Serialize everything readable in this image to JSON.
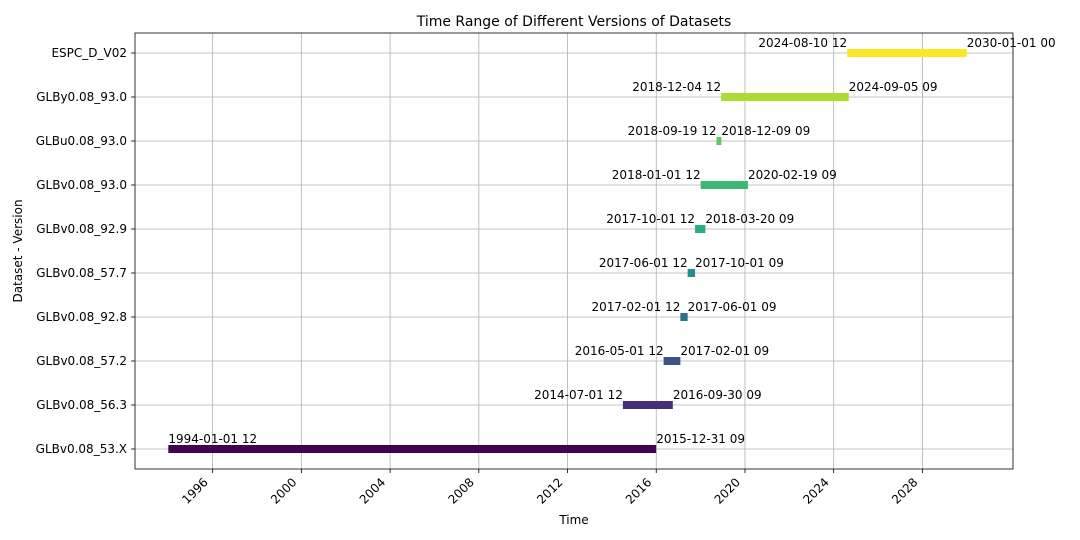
{
  "chart_data": {
    "type": "bar",
    "orientation": "horizontal-range",
    "title": "Time Range of Different Versions of Datasets",
    "xlabel": "Time",
    "ylabel": "Dataset - Version",
    "xlim": [
      "1992-07-01",
      "2032-02-01"
    ],
    "x_ticks": [
      "1996",
      "2000",
      "2004",
      "2008",
      "2012",
      "2016",
      "2020",
      "2024",
      "2028"
    ],
    "grid": true,
    "categories": [
      "GLBv0.08_53.X",
      "GLBv0.08_56.3",
      "GLBv0.08_57.2",
      "GLBv0.08_92.8",
      "GLBv0.08_57.7",
      "GLBv0.08_92.9",
      "GLBv0.08_93.0",
      "GLBu0.08_93.0",
      "GLBy0.08_93.0",
      "ESPC_D_V02"
    ],
    "ranges": [
      {
        "start": "1994-01-01",
        "end": "2015-12-31",
        "start_label": "1994-01-01 12",
        "end_label": "2015-12-31 09",
        "color": "#440154"
      },
      {
        "start": "2014-07-01",
        "end": "2016-09-30",
        "start_label": "2014-07-01 12",
        "end_label": "2016-09-30 09",
        "color": "#472d7b"
      },
      {
        "start": "2016-05-01",
        "end": "2017-02-01",
        "start_label": "2016-05-01 12",
        "end_label": "2017-02-01 09",
        "color": "#3b528b"
      },
      {
        "start": "2017-02-01",
        "end": "2017-06-01",
        "start_label": "2017-02-01 12",
        "end_label": "2017-06-01 09",
        "color": "#2c728e"
      },
      {
        "start": "2017-06-01",
        "end": "2017-10-01",
        "start_label": "2017-06-01 12",
        "end_label": "2017-10-01 09",
        "color": "#21918c"
      },
      {
        "start": "2017-10-01",
        "end": "2018-03-20",
        "start_label": "2017-10-01 12",
        "end_label": "2018-03-20 09",
        "color": "#28ae80"
      },
      {
        "start": "2018-01-01",
        "end": "2020-02-19",
        "start_label": "2018-01-01 12",
        "end_label": "2020-02-19 09",
        "color": "#3bb974"
      },
      {
        "start": "2018-09-19",
        "end": "2018-12-09",
        "start_label": "2018-09-19 12",
        "end_label": "2018-12-09 09",
        "color": "#5ec962"
      },
      {
        "start": "2018-12-04",
        "end": "2024-09-05",
        "start_label": "2018-12-04 12",
        "end_label": "2024-09-05 09",
        "color": "#addc30"
      },
      {
        "start": "2024-08-10",
        "end": "2030-01-01",
        "start_label": "2024-08-10 12",
        "end_label": "2030-01-01 00",
        "color": "#fde725"
      }
    ]
  }
}
